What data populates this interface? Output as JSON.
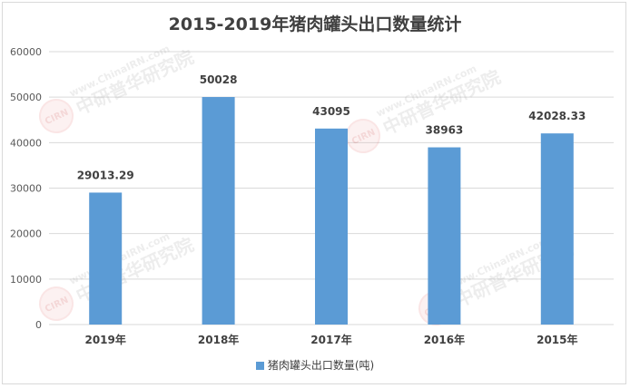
{
  "chart_data": {
    "type": "bar",
    "title": "2015-2019年猪肉罐头出口数量统计",
    "categories": [
      "2019年",
      "2018年",
      "2017年",
      "2016年",
      "2015年"
    ],
    "series": [
      {
        "name": "猪肉罐头出口数量(吨)",
        "values": [
          29013.29,
          50028,
          43095,
          38963,
          42028.33
        ],
        "data_labels": [
          "29013.29",
          "50028",
          "43095",
          "38963",
          "42028.33"
        ],
        "color": "#5b9bd5"
      }
    ],
    "ylim": [
      0,
      60000
    ],
    "yticks": [
      0,
      10000,
      20000,
      30000,
      40000,
      50000,
      60000
    ],
    "grid": true,
    "legend_position": "bottom"
  },
  "watermark": {
    "url": "www.ChinaIRN.com",
    "name": "中研普华研究院",
    "logo": "CIRN"
  }
}
